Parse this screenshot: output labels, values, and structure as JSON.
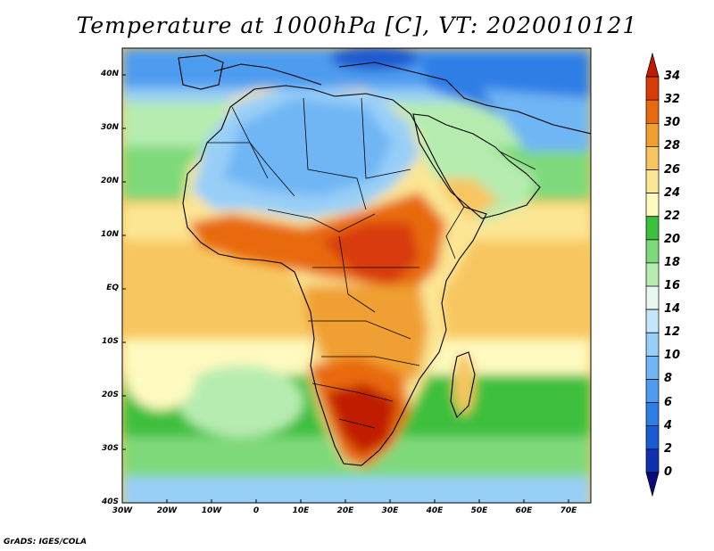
{
  "title": "Temperature at 1000hPa [C], VT: 2020010121",
  "footer": "GrADS: IGES/COLA",
  "map": {
    "lon_range": [
      -30,
      75
    ],
    "lat_range": [
      -40,
      45
    ],
    "lon_ticks": [
      "30W",
      "20W",
      "10W",
      "0",
      "10E",
      "20E",
      "30E",
      "40E",
      "50E",
      "60E",
      "70E"
    ],
    "lat_ticks": [
      "40S",
      "30S",
      "20S",
      "10S",
      "EQ",
      "10N",
      "20N",
      "30N",
      "40N"
    ]
  },
  "colorbar": {
    "labels": [
      "0",
      "2",
      "4",
      "6",
      "8",
      "10",
      "12",
      "14",
      "16",
      "18",
      "20",
      "22",
      "24",
      "26",
      "28",
      "30",
      "32",
      "34"
    ],
    "colors": [
      "#0a0a7a",
      "#1030b0",
      "#1a5ad2",
      "#2f7ee6",
      "#4e9cf0",
      "#70b6f4",
      "#98cff8",
      "#c4e6fa",
      "#e8f8f0",
      "#b6ecb0",
      "#7ed97a",
      "#3cbf3c",
      "#fefac0",
      "#fce694",
      "#f8c660",
      "#f0a030",
      "#e86a10",
      "#d83a08",
      "#c01a04"
    ]
  }
}
